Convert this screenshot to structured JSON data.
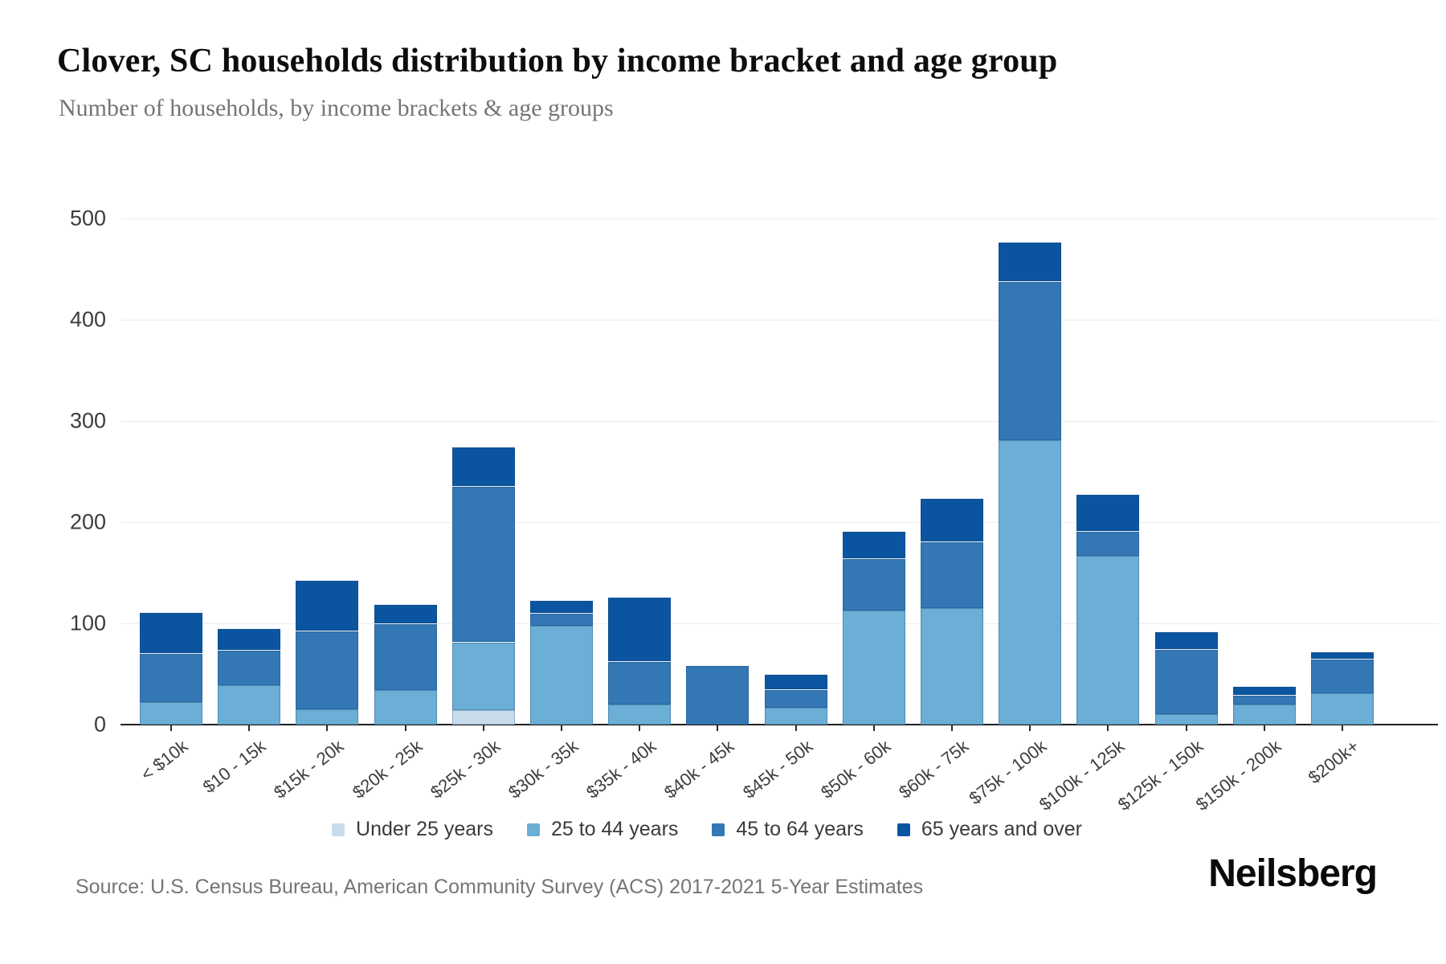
{
  "header": {
    "title": "Clover, SC households distribution by income bracket and age group",
    "subtitle": "Number of households, by income brackets & age groups"
  },
  "chart_data": {
    "type": "bar",
    "stacked": true,
    "categories": [
      "< $10k",
      "$10 - 15k",
      "$15k - 20k",
      "$20k - 25k",
      "$25k - 30k",
      "$30k - 35k",
      "$35k - 40k",
      "$40k - 45k",
      "$45k - 50k",
      "$50k - 60k",
      "$60k - 75k",
      "$75k - 100k",
      "$100k - 125k",
      "$125k - 150k",
      "$150k - 200k",
      "$200k+"
    ],
    "series": [
      {
        "name": "Under 25 years",
        "color": "#c9dcec",
        "values": [
          0,
          0,
          0,
          0,
          14,
          0,
          0,
          0,
          0,
          0,
          0,
          0,
          0,
          0,
          0,
          0
        ]
      },
      {
        "name": "25 to 44 years",
        "color": "#6baed6",
        "values": [
          22,
          39,
          15,
          34,
          68,
          98,
          20,
          0,
          17,
          113,
          115,
          281,
          167,
          10,
          20,
          31
        ]
      },
      {
        "name": "45 to 64 years",
        "color": "#3377b5",
        "values": [
          49,
          35,
          78,
          66,
          154,
          12,
          43,
          58,
          18,
          51,
          66,
          157,
          24,
          65,
          9,
          34
        ]
      },
      {
        "name": "65 years and over",
        "color": "#0b55a0",
        "values": [
          40,
          21,
          50,
          19,
          39,
          13,
          63,
          0,
          15,
          27,
          43,
          39,
          37,
          17,
          9,
          7
        ]
      }
    ],
    "totals": [
      111,
      95,
      143,
      119,
      275,
      123,
      126,
      58,
      50,
      191,
      224,
      477,
      228,
      92,
      38,
      72
    ],
    "ylim": [
      0,
      500
    ],
    "yticks": [
      0,
      100,
      200,
      300,
      400,
      500
    ],
    "grid": "horizontal",
    "legend_position": "bottom"
  },
  "footer": {
    "source": "Source: U.S. Census Bureau, American Community Survey (ACS) 2017-2021 5-Year Estimates",
    "brand": "Neilsberg"
  }
}
